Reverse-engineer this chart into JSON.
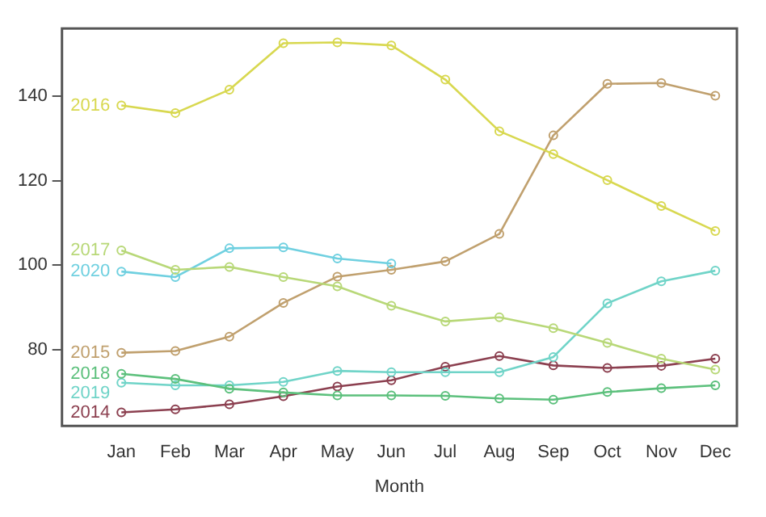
{
  "chart_data": {
    "type": "line",
    "xlabel": "Month",
    "categories": [
      "Jan",
      "Feb",
      "Mar",
      "Apr",
      "May",
      "Jun",
      "Jul",
      "Aug",
      "Sep",
      "Oct",
      "Nov",
      "Dec"
    ],
    "ylim": [
      62,
      156
    ],
    "yticks": [
      80,
      100,
      120,
      140
    ],
    "grid": false,
    "legend": false,
    "marker": "circle",
    "line_style": "solid",
    "series": [
      {
        "name": "2016",
        "color": "#d8d850",
        "values": [
          137.8,
          136,
          141.5,
          152.5,
          152.7,
          152,
          143.9,
          131.7,
          126.3,
          120.1,
          114,
          108.1
        ]
      },
      {
        "name": "2017",
        "color": "#b8d878",
        "values": [
          103.5,
          98.9,
          99.6,
          97.2,
          95,
          90.4,
          86.7,
          87.7,
          85.1,
          81.6,
          77.9,
          75.3
        ]
      },
      {
        "name": "2020",
        "color": "#6fd0e0",
        "values": [
          98.5,
          97.2,
          104,
          104.2,
          101.6,
          100.4,
          null,
          null,
          null,
          null,
          null,
          null
        ]
      },
      {
        "name": "2015",
        "color": "#c0a06e",
        "values": [
          79.3,
          79.7,
          83.1,
          91.1,
          97.3,
          98.9,
          100.9,
          107.4,
          130.7,
          142.9,
          143.1,
          140.1
        ]
      },
      {
        "name": "2018",
        "color": "#5cc07c",
        "values": [
          74.3,
          73.1,
          70.8,
          69.9,
          69.2,
          69.2,
          69.1,
          68.5,
          68.2,
          70,
          70.9,
          71.6
        ]
      },
      {
        "name": "2019",
        "color": "#70d4c8",
        "values": [
          72.2,
          71.6,
          71.6,
          72.4,
          75,
          74.7,
          74.7,
          74.7,
          78.3,
          91,
          96.2,
          98.7
        ]
      },
      {
        "name": "2014",
        "color": "#8c4050",
        "values": [
          65.2,
          65.9,
          67.1,
          69,
          71.3,
          72.8,
          76,
          78.5,
          76.3,
          75.7,
          76.2,
          77.9
        ]
      }
    ]
  }
}
